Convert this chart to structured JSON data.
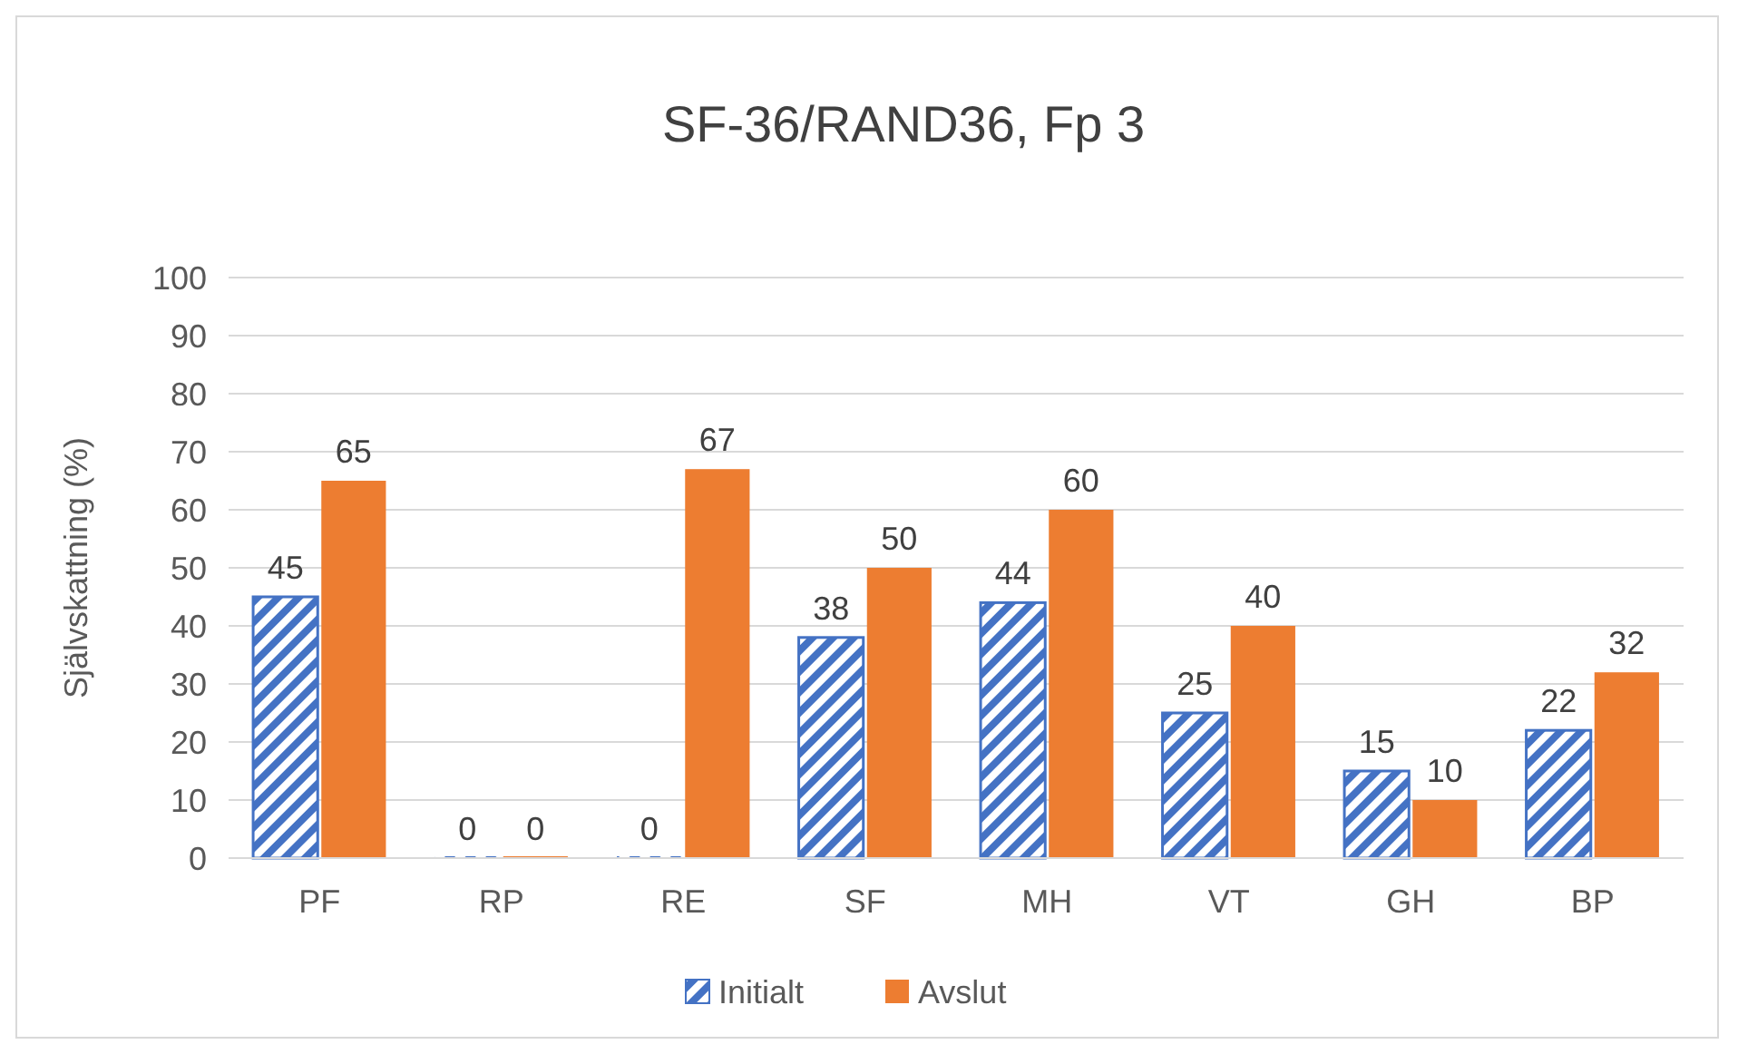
{
  "chart_data": {
    "type": "bar",
    "title": "SF-36/RAND36, Fp 3",
    "ylabel": "Självskattning (%)",
    "categories": [
      "PF",
      "RP",
      "RE",
      "SF",
      "MH",
      "VT",
      "GH",
      "BP"
    ],
    "series": [
      {
        "name": "Initialt",
        "color": "#4472c4",
        "values": [
          45,
          0,
          0,
          38,
          44,
          25,
          15,
          22
        ]
      },
      {
        "name": "Avslut",
        "color": "#ed7d31",
        "values": [
          65,
          0,
          67,
          50,
          60,
          40,
          10,
          32
        ]
      }
    ],
    "ylim": [
      0,
      100
    ],
    "yticks": [
      0,
      10,
      20,
      30,
      40,
      50,
      60,
      70,
      80,
      90,
      100
    ],
    "grid": "y",
    "legend": "bottom",
    "data_labels": true
  }
}
